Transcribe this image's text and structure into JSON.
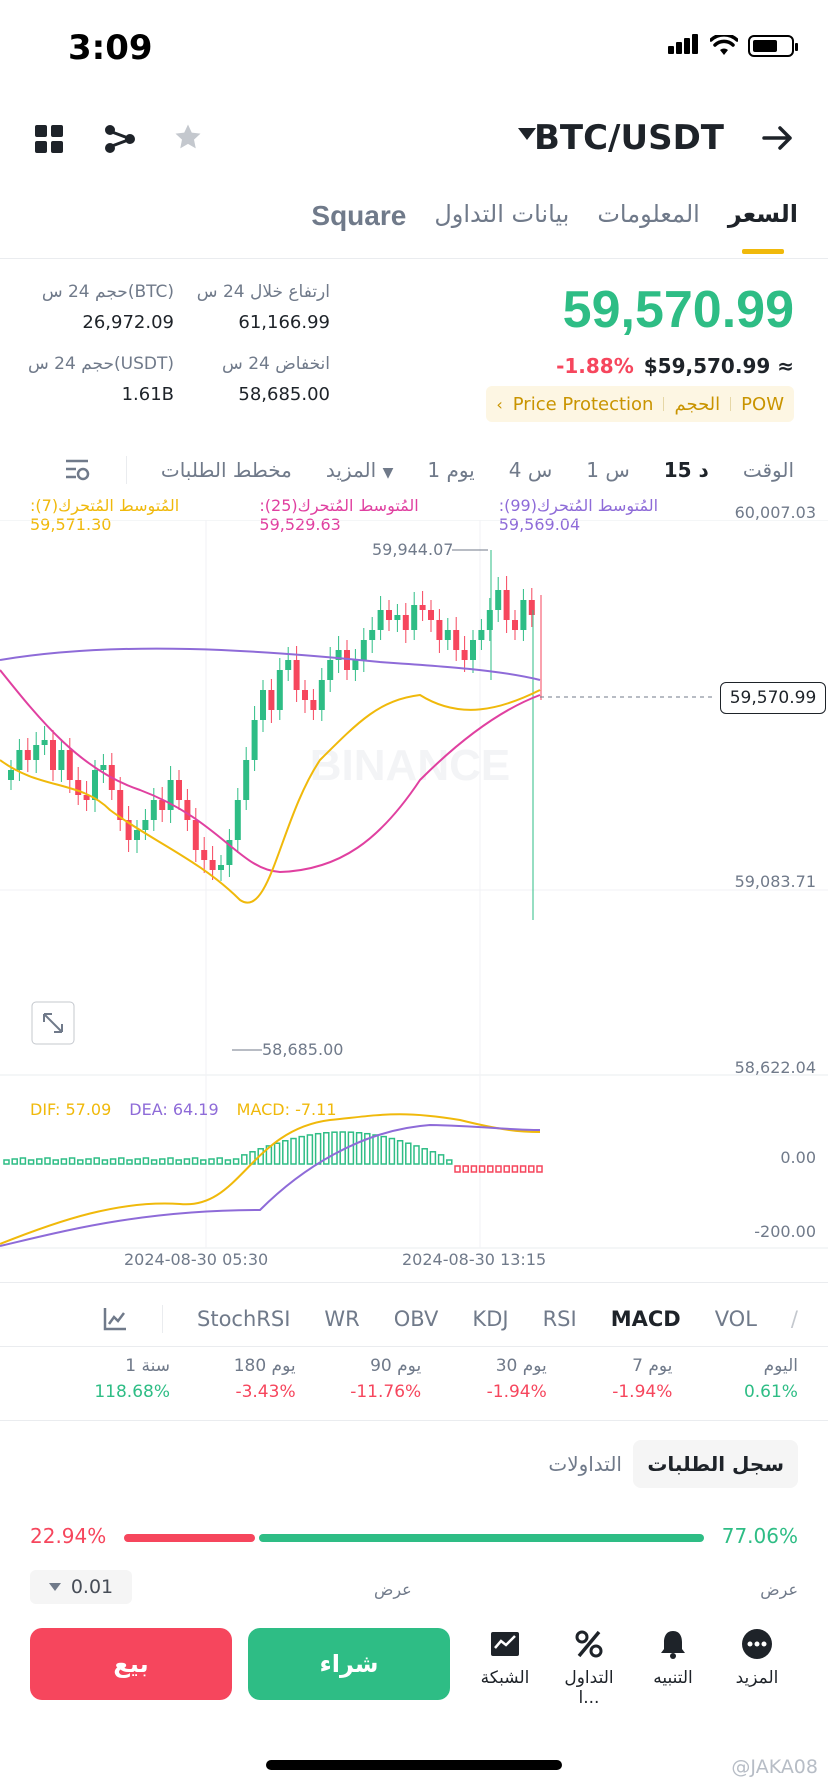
{
  "status": {
    "time": "3:09"
  },
  "header": {
    "pair": "BTC/USDT"
  },
  "tabs": [
    {
      "label": "السعر"
    },
    {
      "label": "المعلومات"
    },
    {
      "label": "بيانات التداول"
    },
    {
      "label": "Square"
    }
  ],
  "price": {
    "last": "59,570.99",
    "approx": "$59,570.99 ≈",
    "change": "-1.88%",
    "badges": [
      "POW",
      "الحجم",
      "Price Protection"
    ]
  },
  "stats": {
    "high_label": "ارتفاع خلال 24 س",
    "high_value": "61,166.99",
    "vol_btc_label": "حجم 24 س(BTC)",
    "vol_btc_value": "26,972.09",
    "low_label": "انخفاض 24 س",
    "low_value": "58,685.00",
    "vol_usdt_label": "حجم 24 س(USDT)",
    "vol_usdt_value": "1.61B"
  },
  "timebar": [
    "الوقت",
    "15 د",
    "1 س",
    "4 س",
    "1 يوم",
    "المزيد",
    "مخطط الطلبات"
  ],
  "ma": {
    "ma7": "المُتوسط المُتحرك(7): 59,571.30",
    "ma25": "المُتوسط المُتحرك(25): 59,529.63",
    "ma99": "المُتوسط المُتحرك(99): 59,569.04"
  },
  "chart_data": {
    "type": "candlestick",
    "price_axis": [
      "60,007.03",
      "59,083.71",
      "58,622.04"
    ],
    "current_price": "59,570.99",
    "high_marker": "59,944.07",
    "low_marker": "58,685.00",
    "macd_axis": [
      "0.00",
      "-200.00"
    ],
    "time_labels": [
      "2024-08-30 05:30",
      "2024-08-30 13:15"
    ],
    "macd": {
      "dif": "DIF: 57.09",
      "dea": "DEA: 64.19",
      "macd": "MACD: -7.11"
    },
    "watermark": "BINANCE",
    "colors": {
      "up": "#2ebd85",
      "down": "#f6465d",
      "ma7": "#f0b90b",
      "ma25": "#e040a0",
      "ma99": "#8e6bd8"
    }
  },
  "indicators": [
    "VOL",
    "MACD",
    "RSI",
    "KDJ",
    "OBV",
    "WR",
    "StochRSI"
  ],
  "performance": [
    {
      "label": "اليوم",
      "value": "0.61%",
      "dir": "up"
    },
    {
      "label": "7 يوم",
      "value": "-1.94%",
      "dir": "down"
    },
    {
      "label": "30 يوم",
      "value": "-1.94%",
      "dir": "down"
    },
    {
      "label": "90 يوم",
      "value": "-11.76%",
      "dir": "down"
    },
    {
      "label": "180 يوم",
      "value": "-3.43%",
      "dir": "down"
    },
    {
      "label": "1 سنة",
      "value": "118.68%",
      "dir": "up"
    }
  ],
  "orderbook": {
    "tab_active": "سجل الطلبات",
    "tab_other": "التداولات",
    "buy_ratio": "77.06%",
    "sell_ratio": "22.94%",
    "buy_fraction": 0.7706,
    "bid_label": "عرض",
    "ask_label": "عرض",
    "precision": "0.01"
  },
  "actions": {
    "sell": "بيع",
    "buy": "شراء",
    "grid": "الشبكة",
    "trading": "التداول ا...",
    "alert": "التنبيه",
    "more": "المزيد"
  },
  "footer": {
    "watermark": "@JAKA08"
  }
}
